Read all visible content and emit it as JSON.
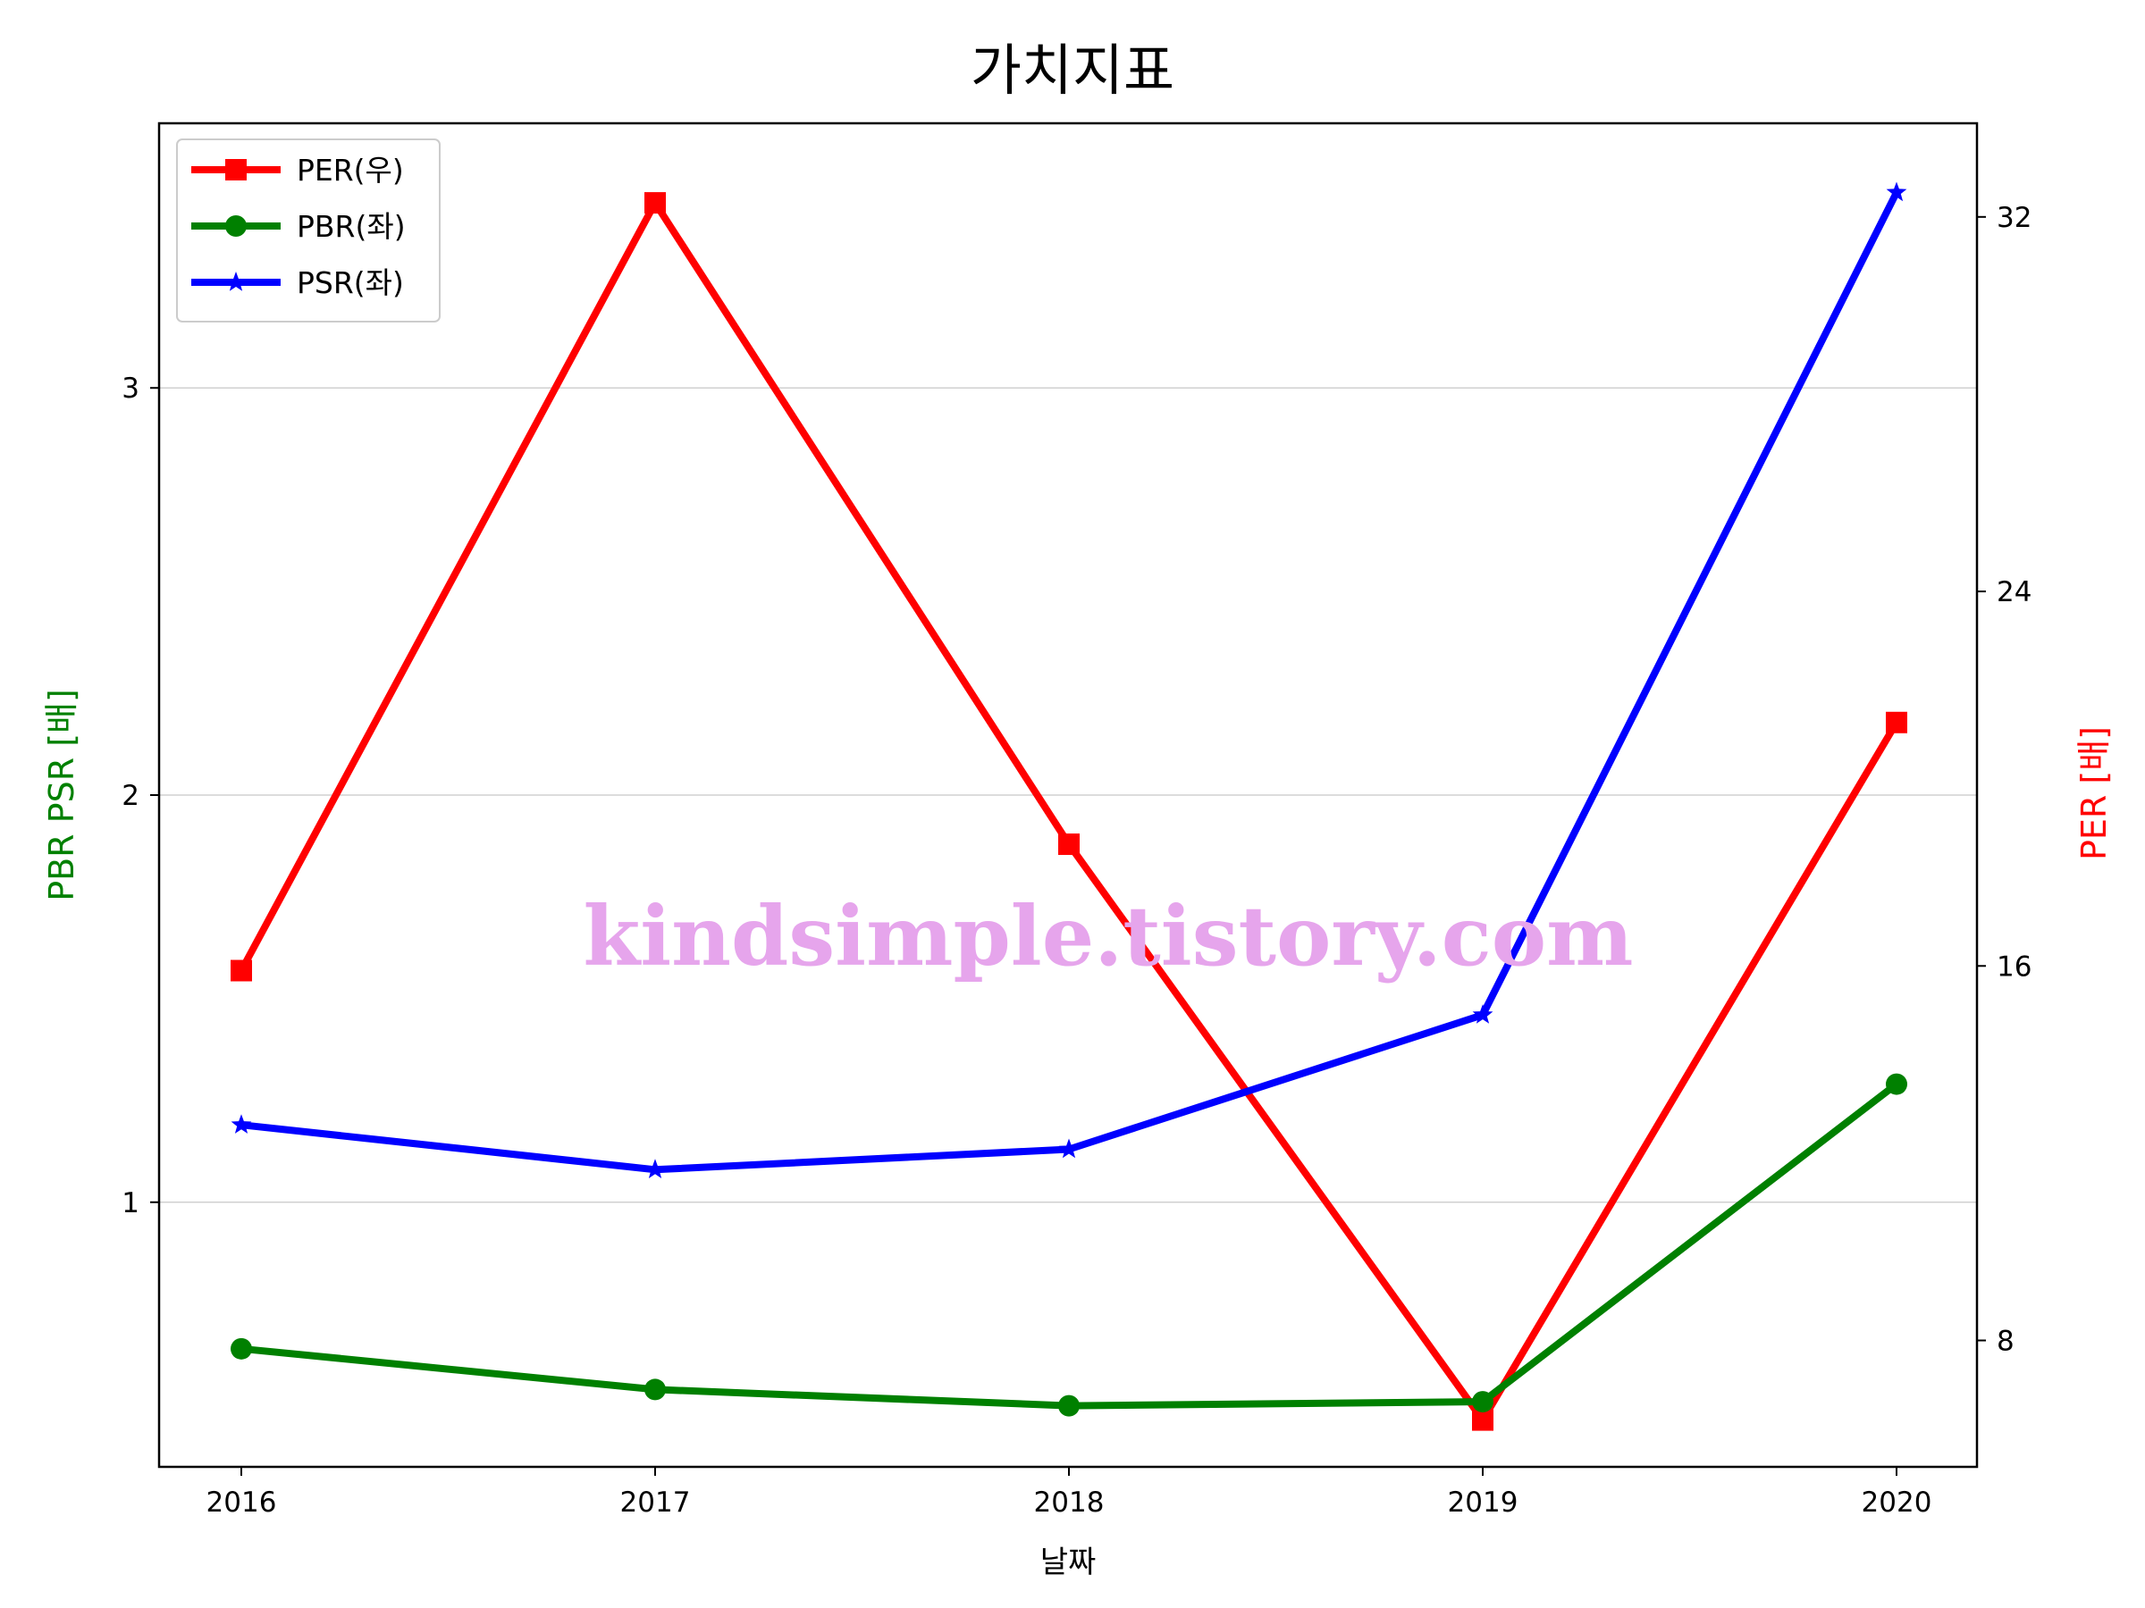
{
  "chart_data": {
    "type": "line",
    "title": "가치지표",
    "xlabel": "날짜",
    "ylabel_left": "PBR PSR [배]",
    "ylabel_right": "PER [배]",
    "categories": [
      "2016",
      "2017",
      "2018",
      "2019",
      "2020"
    ],
    "left_axis": {
      "ylim": [
        0.35,
        3.65
      ],
      "ticks": [
        1,
        2,
        3
      ],
      "tick_labels": [
        "1",
        "2",
        "3"
      ]
    },
    "right_axis": {
      "ylim": [
        5.3,
        34.0
      ],
      "ticks": [
        8,
        16,
        24,
        32
      ],
      "tick_labels": [
        "8",
        "16",
        "24",
        "32"
      ]
    },
    "grid": {
      "horizontal": true,
      "vertical": false,
      "axis": "left"
    },
    "legend_position": "top-left",
    "series": [
      {
        "name": "PER(우)",
        "axis": "right",
        "color": "#ff0000",
        "marker": "square",
        "values": [
          15.9,
          32.3,
          18.6,
          6.3,
          21.2
        ]
      },
      {
        "name": "PBR(좌)",
        "axis": "left",
        "color": "#008000",
        "marker": "circle",
        "values": [
          0.64,
          0.54,
          0.5,
          0.51,
          1.29
        ]
      },
      {
        "name": "PSR(좌)",
        "axis": "left",
        "color": "#0000ff",
        "marker": "star",
        "values": [
          1.19,
          1.08,
          1.13,
          1.46,
          3.48
        ]
      }
    ],
    "watermark": "kindsimple.tistory.com"
  }
}
